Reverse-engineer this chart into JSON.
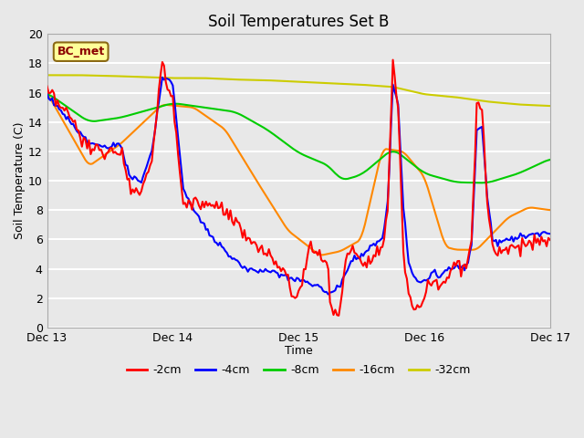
{
  "title": "Soil Temperatures Set B",
  "xlabel": "Time",
  "ylabel": "Soil Temperature (C)",
  "xlim": [
    0,
    96
  ],
  "ylim": [
    0,
    20
  ],
  "yticks": [
    0,
    2,
    4,
    6,
    8,
    10,
    12,
    14,
    16,
    18,
    20
  ],
  "xtick_positions": [
    0,
    24,
    48,
    72,
    96
  ],
  "xtick_labels": [
    "Dec 13",
    "Dec 14",
    "Dec 15",
    "Dec 16",
    "Dec 17"
  ],
  "fig_bg_color": "#e8e8e8",
  "ax_bg_color": "#e8e8e8",
  "grid_color": "#ffffff",
  "annotation_text": "BC_met",
  "annotation_bg": "#ffff99",
  "annotation_border": "#8b6914",
  "annotation_text_color": "#8b0000",
  "line_colors": {
    "-2cm": "#ff0000",
    "-4cm": "#0000ff",
    "-8cm": "#00cc00",
    "-16cm": "#ff8800",
    "-32cm": "#cccc00"
  },
  "line_width": 1.5,
  "legend_labels": [
    "-2cm",
    "-4cm",
    "-8cm",
    "-16cm",
    "-32cm"
  ]
}
